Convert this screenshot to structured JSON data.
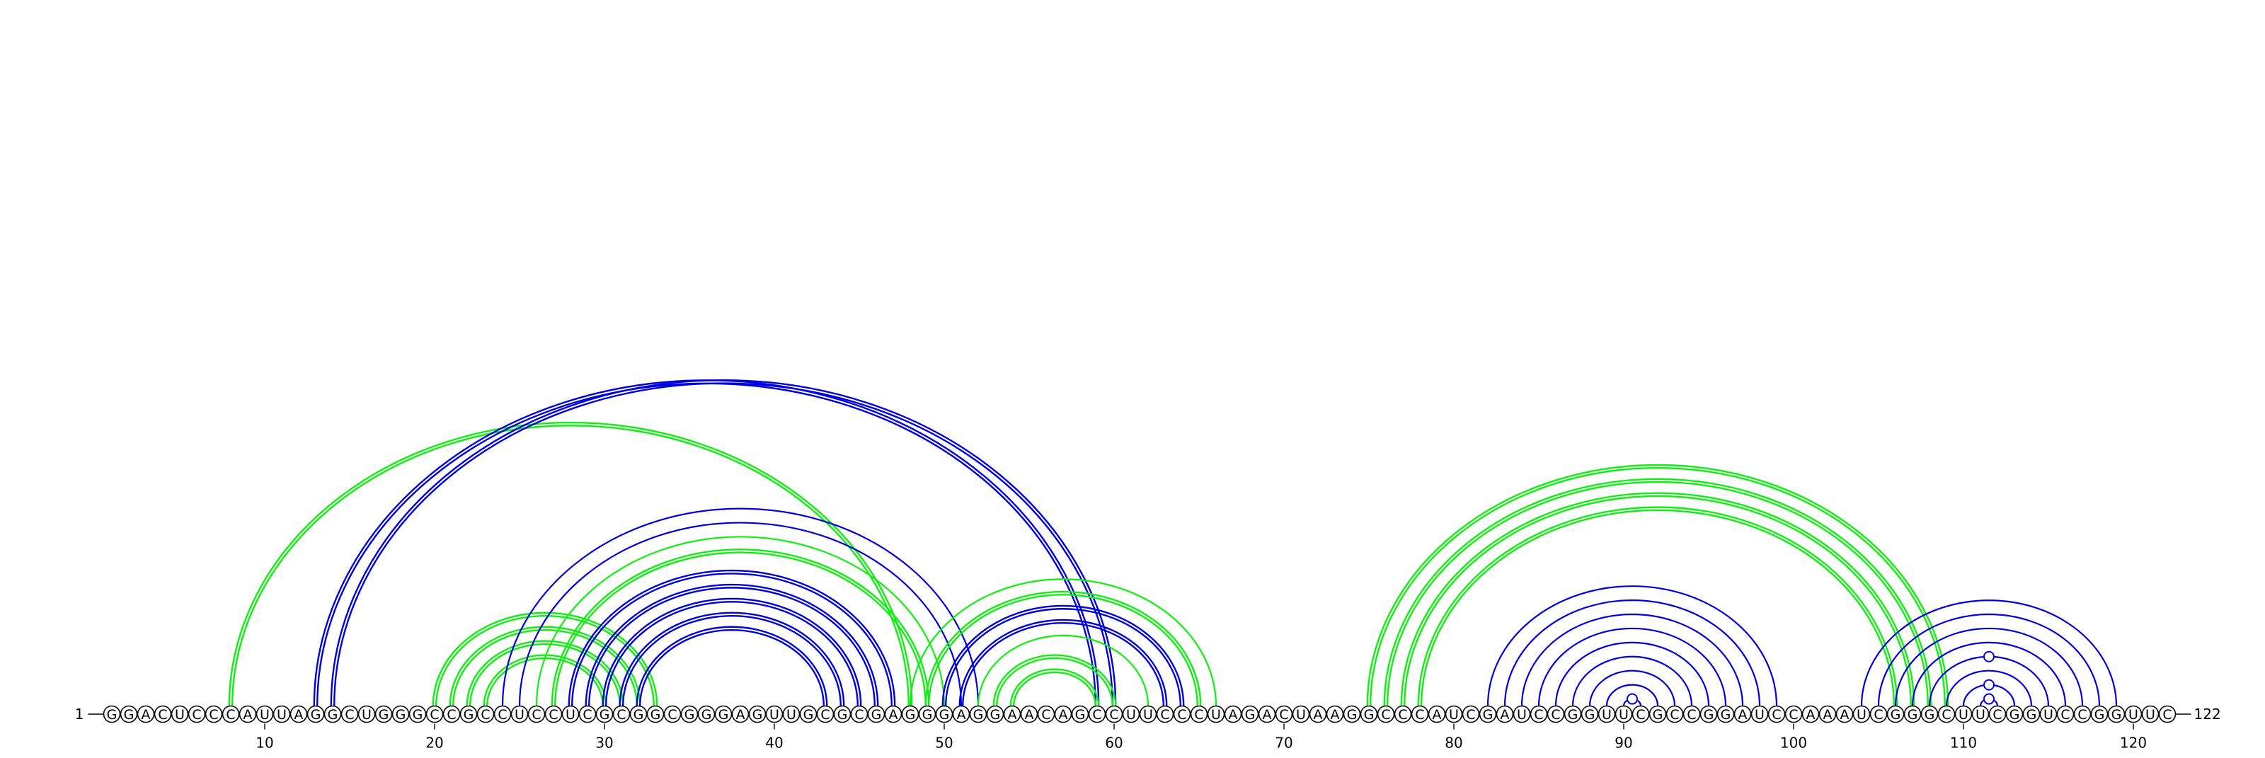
{
  "sequence": "GGACUCCCAUUAGGCUGGGCCGCCUCCUCGCGGCGGGAGUUGCGCGAGGGAGGAACAGCCUUCCCUAGACUAAGGCCCAUCGAUCCGGUUCGCCGGAUCCAAAUCGGGCUUCGGUCCGGUUC",
  "start_label": "1",
  "end_label": "122",
  "tick_numbers": [
    10,
    20,
    30,
    40,
    50,
    60,
    70,
    80,
    90,
    100,
    110,
    120
  ],
  "colors": {
    "blue": "#0000dd",
    "green": "#11ee11"
  },
  "arcs": [
    {
      "i": 8,
      "j": 48,
      "color": "green",
      "style": "double"
    },
    {
      "i": 13,
      "j": 59,
      "color": "blue",
      "style": "double"
    },
    {
      "i": 14,
      "j": 60,
      "color": "blue",
      "style": "double"
    },
    {
      "i": 20,
      "j": 33,
      "color": "green",
      "style": "double"
    },
    {
      "i": 21,
      "j": 32,
      "color": "green",
      "style": "double"
    },
    {
      "i": 22,
      "j": 31,
      "color": "green",
      "style": "double"
    },
    {
      "i": 23,
      "j": 30,
      "color": "green",
      "style": "double"
    },
    {
      "i": 24,
      "j": 52,
      "color": "blue",
      "style": "single"
    },
    {
      "i": 25,
      "j": 51,
      "color": "blue",
      "style": "single"
    },
    {
      "i": 26,
      "j": 50,
      "color": "green",
      "style": "single"
    },
    {
      "i": 27,
      "j": 49,
      "color": "green",
      "style": "double"
    },
    {
      "i": 28,
      "j": 47,
      "color": "blue",
      "style": "double"
    },
    {
      "i": 29,
      "j": 46,
      "color": "blue",
      "style": "double"
    },
    {
      "i": 30,
      "j": 45,
      "color": "blue",
      "style": "double"
    },
    {
      "i": 31,
      "j": 44,
      "color": "blue",
      "style": "double"
    },
    {
      "i": 32,
      "j": 43,
      "color": "blue",
      "style": "double"
    },
    {
      "i": 48,
      "j": 66,
      "color": "green",
      "style": "single"
    },
    {
      "i": 49,
      "j": 65,
      "color": "green",
      "style": "double"
    },
    {
      "i": 50,
      "j": 64,
      "color": "blue",
      "style": "double"
    },
    {
      "i": 51,
      "j": 63,
      "color": "blue",
      "style": "double"
    },
    {
      "i": 52,
      "j": 62,
      "color": "green",
      "style": "single"
    },
    {
      "i": 53,
      "j": 60,
      "color": "green",
      "style": "double"
    },
    {
      "i": 54,
      "j": 59,
      "color": "green",
      "style": "double"
    },
    {
      "i": 75,
      "j": 109,
      "color": "green",
      "style": "double"
    },
    {
      "i": 76,
      "j": 108,
      "color": "green",
      "style": "double"
    },
    {
      "i": 77,
      "j": 107,
      "color": "green",
      "style": "double"
    },
    {
      "i": 78,
      "j": 106,
      "color": "green",
      "style": "double"
    },
    {
      "i": 82,
      "j": 99,
      "color": "blue",
      "style": "single"
    },
    {
      "i": 83,
      "j": 98,
      "color": "blue",
      "style": "single"
    },
    {
      "i": 84,
      "j": 97,
      "color": "blue",
      "style": "single"
    },
    {
      "i": 85,
      "j": 96,
      "color": "blue",
      "style": "single"
    },
    {
      "i": 86,
      "j": 95,
      "color": "blue",
      "style": "single"
    },
    {
      "i": 87,
      "j": 94,
      "color": "blue",
      "style": "single"
    },
    {
      "i": 88,
      "j": 93,
      "color": "blue",
      "style": "single"
    },
    {
      "i": 89,
      "j": 92,
      "color": "blue",
      "style": "single"
    },
    {
      "i": 90,
      "j": 91,
      "color": "blue",
      "style": "single"
    },
    {
      "i": 104,
      "j": 119,
      "color": "blue",
      "style": "single"
    },
    {
      "i": 105,
      "j": 118,
      "color": "blue",
      "style": "single"
    },
    {
      "i": 106,
      "j": 117,
      "color": "blue",
      "style": "single"
    },
    {
      "i": 107,
      "j": 116,
      "color": "blue",
      "style": "single"
    },
    {
      "i": 108,
      "j": 115,
      "color": "blue",
      "style": "single"
    },
    {
      "i": 109,
      "j": 114,
      "color": "blue",
      "style": "single"
    },
    {
      "i": 110,
      "j": 113,
      "color": "blue",
      "style": "single"
    },
    {
      "i": 111,
      "j": 112,
      "color": "blue",
      "style": "single"
    }
  ],
  "markers": [
    {
      "between": [
        90,
        91
      ],
      "level": 1,
      "color": "blue"
    },
    {
      "between": [
        111,
        112
      ],
      "level": 1,
      "color": "blue"
    },
    {
      "between": [
        111,
        112
      ],
      "level": 2,
      "color": "blue"
    },
    {
      "between": [
        111,
        112
      ],
      "level": 4,
      "color": "blue"
    }
  ]
}
